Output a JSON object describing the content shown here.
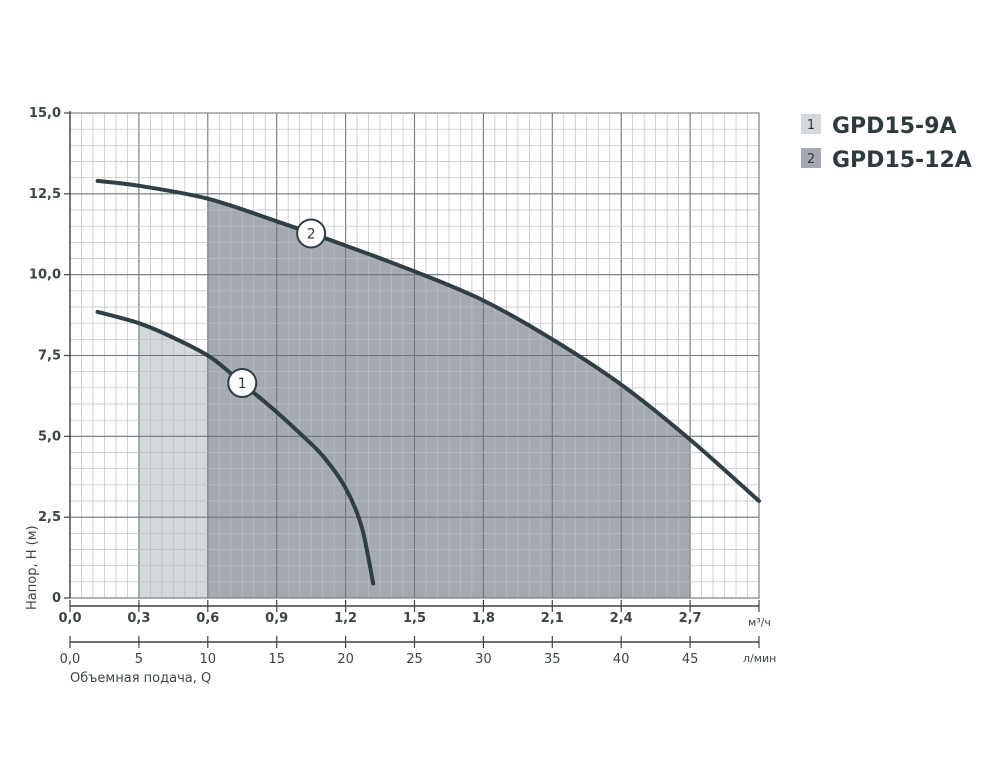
{
  "chart_data": {
    "type": "line",
    "ylabel": "Напор, H (м)",
    "xlabel": "Объемная подача, Q",
    "x_unit_top": "м³/ч",
    "x_unit_bottom": "л/мин",
    "xlim": [
      0,
      3.0
    ],
    "ylim": [
      0,
      15
    ],
    "grid": true,
    "legend_position": "top-right",
    "y_ticks": [
      "0",
      "2,5",
      "5,0",
      "7,5",
      "10,0",
      "12,5",
      "15,0"
    ],
    "y_tick_values": [
      0,
      2.5,
      5,
      7.5,
      10,
      12.5,
      15
    ],
    "x_ticks_top": [
      "0,0",
      "0,3",
      "0,6",
      "0,9",
      "1,2",
      "1,5",
      "1,8",
      "2,1",
      "2,4",
      "2,7"
    ],
    "x_tick_values_top": [
      0,
      0.3,
      0.6,
      0.9,
      1.2,
      1.5,
      1.8,
      2.1,
      2.4,
      2.7
    ],
    "x_ticks_bottom": [
      "0,0",
      "5",
      "10",
      "15",
      "20",
      "25",
      "30",
      "35",
      "40",
      "45"
    ],
    "x_tick_values_bottom": [
      0,
      5,
      10,
      15,
      20,
      25,
      30,
      35,
      40,
      45
    ],
    "series": [
      {
        "name": "GPD15-9A",
        "marker_label": "1",
        "color": "#2f3f44",
        "shade_color": "#d3d8db",
        "operating_range": [
          0.3,
          1.2
        ],
        "x": [
          0.12,
          0.3,
          0.45,
          0.6,
          0.7,
          0.8,
          0.9,
          1.0,
          1.1,
          1.2,
          1.27,
          1.32
        ],
        "y": [
          8.85,
          8.5,
          8.05,
          7.5,
          6.95,
          6.35,
          5.75,
          5.1,
          4.4,
          3.4,
          2.2,
          0.45
        ]
      },
      {
        "name": "GPD15-12A",
        "marker_label": "2",
        "color": "#2f3f44",
        "shade_color": "#a5aab1",
        "operating_range": [
          0.6,
          2.7
        ],
        "x": [
          0.12,
          0.3,
          0.6,
          0.9,
          1.2,
          1.5,
          1.8,
          2.1,
          2.4,
          2.7,
          3.0
        ],
        "y": [
          12.9,
          12.75,
          12.35,
          11.65,
          10.9,
          10.1,
          9.2,
          8.0,
          6.6,
          4.9,
          3.0
        ]
      }
    ]
  }
}
